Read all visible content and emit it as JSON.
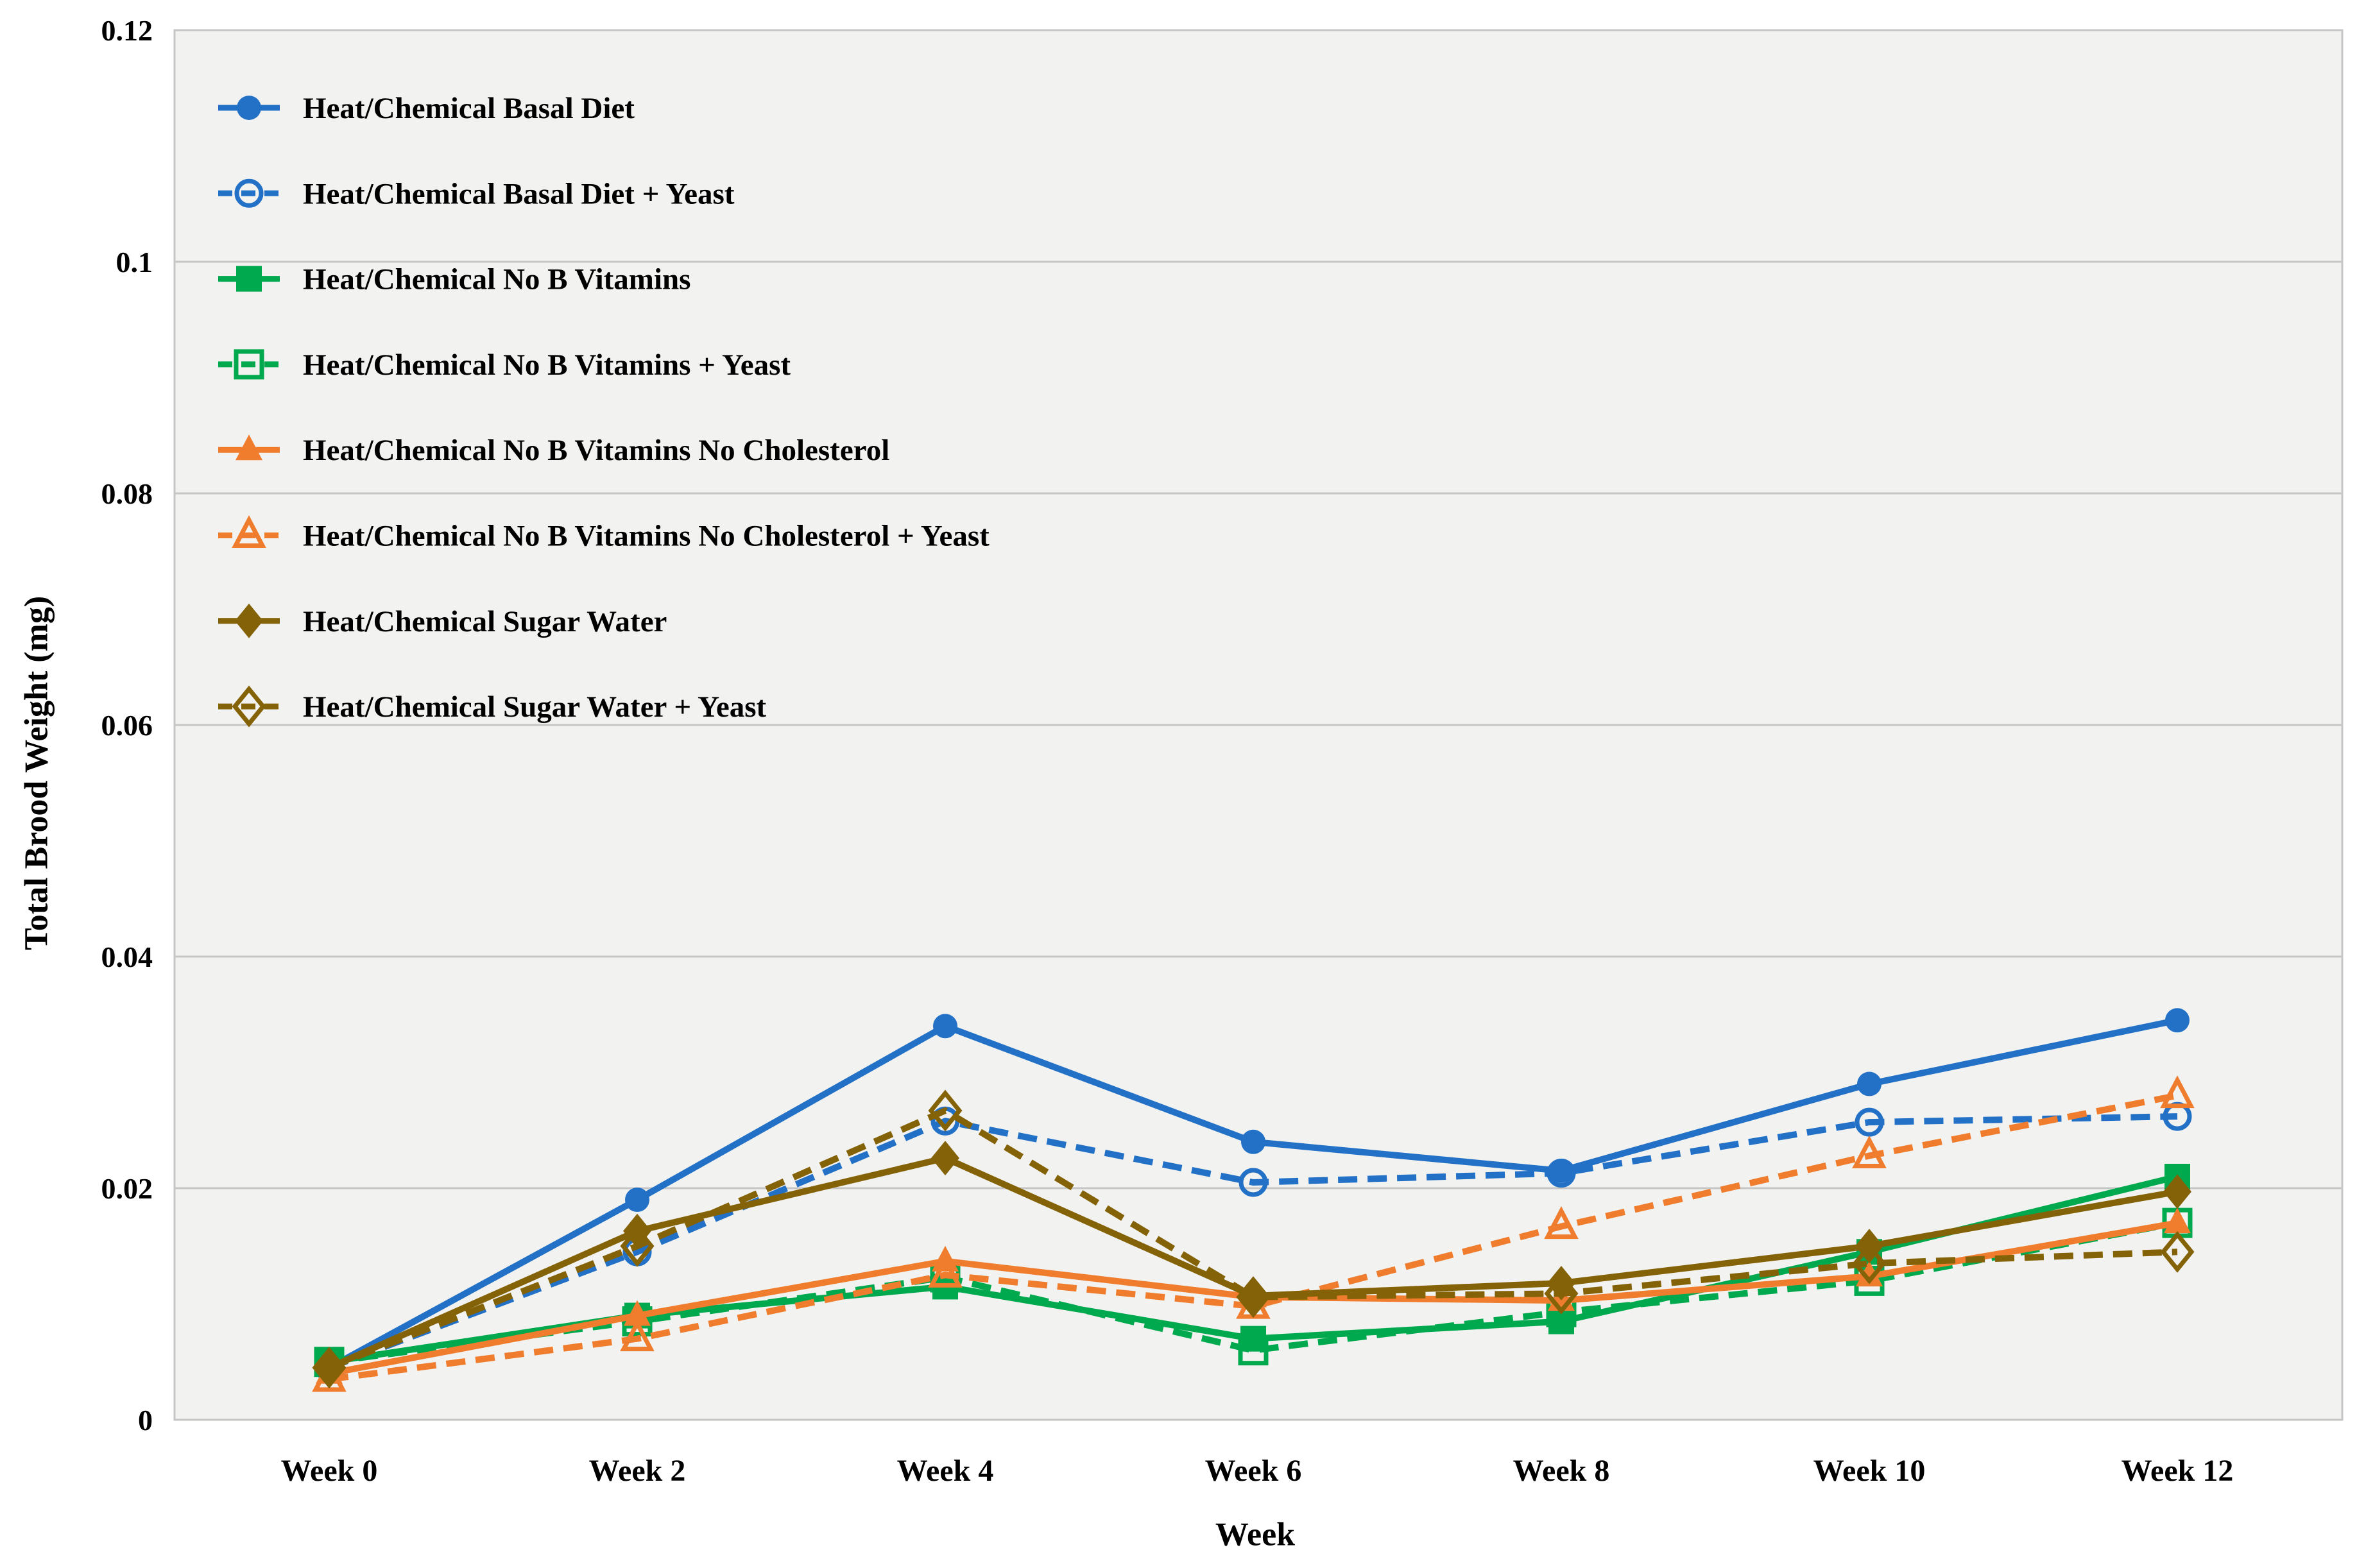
{
  "chart_data": {
    "type": "line",
    "title": "",
    "xlabel": "Week",
    "ylabel": "Total Brood Weight (mg)",
    "x_categories": [
      "Week 0",
      "Week 2",
      "Week 4",
      "Week 6",
      "Week 8",
      "Week 10",
      "Week 12"
    ],
    "x_values": [
      0,
      2,
      4,
      6,
      8,
      10,
      12
    ],
    "ylim": [
      0,
      0.12
    ],
    "y_ticks": [
      0,
      0.02,
      0.04,
      0.06,
      0.08,
      0.1,
      0.12
    ],
    "y_tick_labels": [
      "0",
      "0.02",
      "0.04",
      "0.06",
      "0.08",
      "0.1",
      "0.12"
    ],
    "grid": "horizontal",
    "legend_position": "top-left-inside",
    "plot_bg_color": "#f2f2f0",
    "grid_color": "#c6c6c6",
    "text_color": "#000000",
    "series": [
      {
        "name": "Heat/Chemical Basal Diet",
        "color": "#2271c7",
        "line": "solid",
        "marker": "circle",
        "fill": "filled",
        "values": [
          0.0045,
          0.019,
          0.034,
          0.024,
          0.0215,
          0.029,
          0.0345
        ]
      },
      {
        "name": "Heat/Chemical Basal Diet + Yeast",
        "color": "#2271c7",
        "line": "dashed",
        "marker": "circle",
        "fill": "open",
        "values": [
          0.0045,
          0.0145,
          0.0258,
          0.0205,
          0.0213,
          0.0257,
          0.0262
        ]
      },
      {
        "name": "Heat/Chemical No B Vitamins",
        "color": "#00a94e",
        "line": "solid",
        "marker": "square",
        "fill": "filled",
        "values": [
          0.005,
          0.009,
          0.0115,
          0.007,
          0.0085,
          0.0145,
          0.021
        ]
      },
      {
        "name": "Heat/Chemical No B Vitamins + Yeast",
        "color": "#00a94e",
        "line": "dashed",
        "marker": "square",
        "fill": "open",
        "values": [
          0.005,
          0.0085,
          0.0123,
          0.006,
          0.0093,
          0.012,
          0.017
        ]
      },
      {
        "name": "Heat/Chemical No B Vitamins No Cholesterol",
        "color": "#ef7d2d",
        "line": "solid",
        "marker": "triangle",
        "fill": "filled",
        "values": [
          0.004,
          0.009,
          0.0137,
          0.0106,
          0.0103,
          0.0124,
          0.017
        ]
      },
      {
        "name": "Heat/Chemical No B Vitamins No Cholesterol + Yeast",
        "color": "#ef7d2d",
        "line": "dashed",
        "marker": "triangle",
        "fill": "open",
        "values": [
          0.0035,
          0.007,
          0.0125,
          0.0098,
          0.0167,
          0.0228,
          0.028
        ]
      },
      {
        "name": "Heat/Chemical Sugar Water",
        "color": "#846207",
        "line": "solid",
        "marker": "diamond",
        "fill": "filled",
        "values": [
          0.0045,
          0.0163,
          0.0226,
          0.0107,
          0.0118,
          0.015,
          0.0197
        ]
      },
      {
        "name": "Heat/Chemical Sugar Water + Yeast",
        "color": "#846207",
        "line": "dashed",
        "marker": "diamond",
        "fill": "open",
        "values": [
          0.0045,
          0.015,
          0.0267,
          0.0106,
          0.0109,
          0.0135,
          0.0145
        ]
      }
    ]
  }
}
